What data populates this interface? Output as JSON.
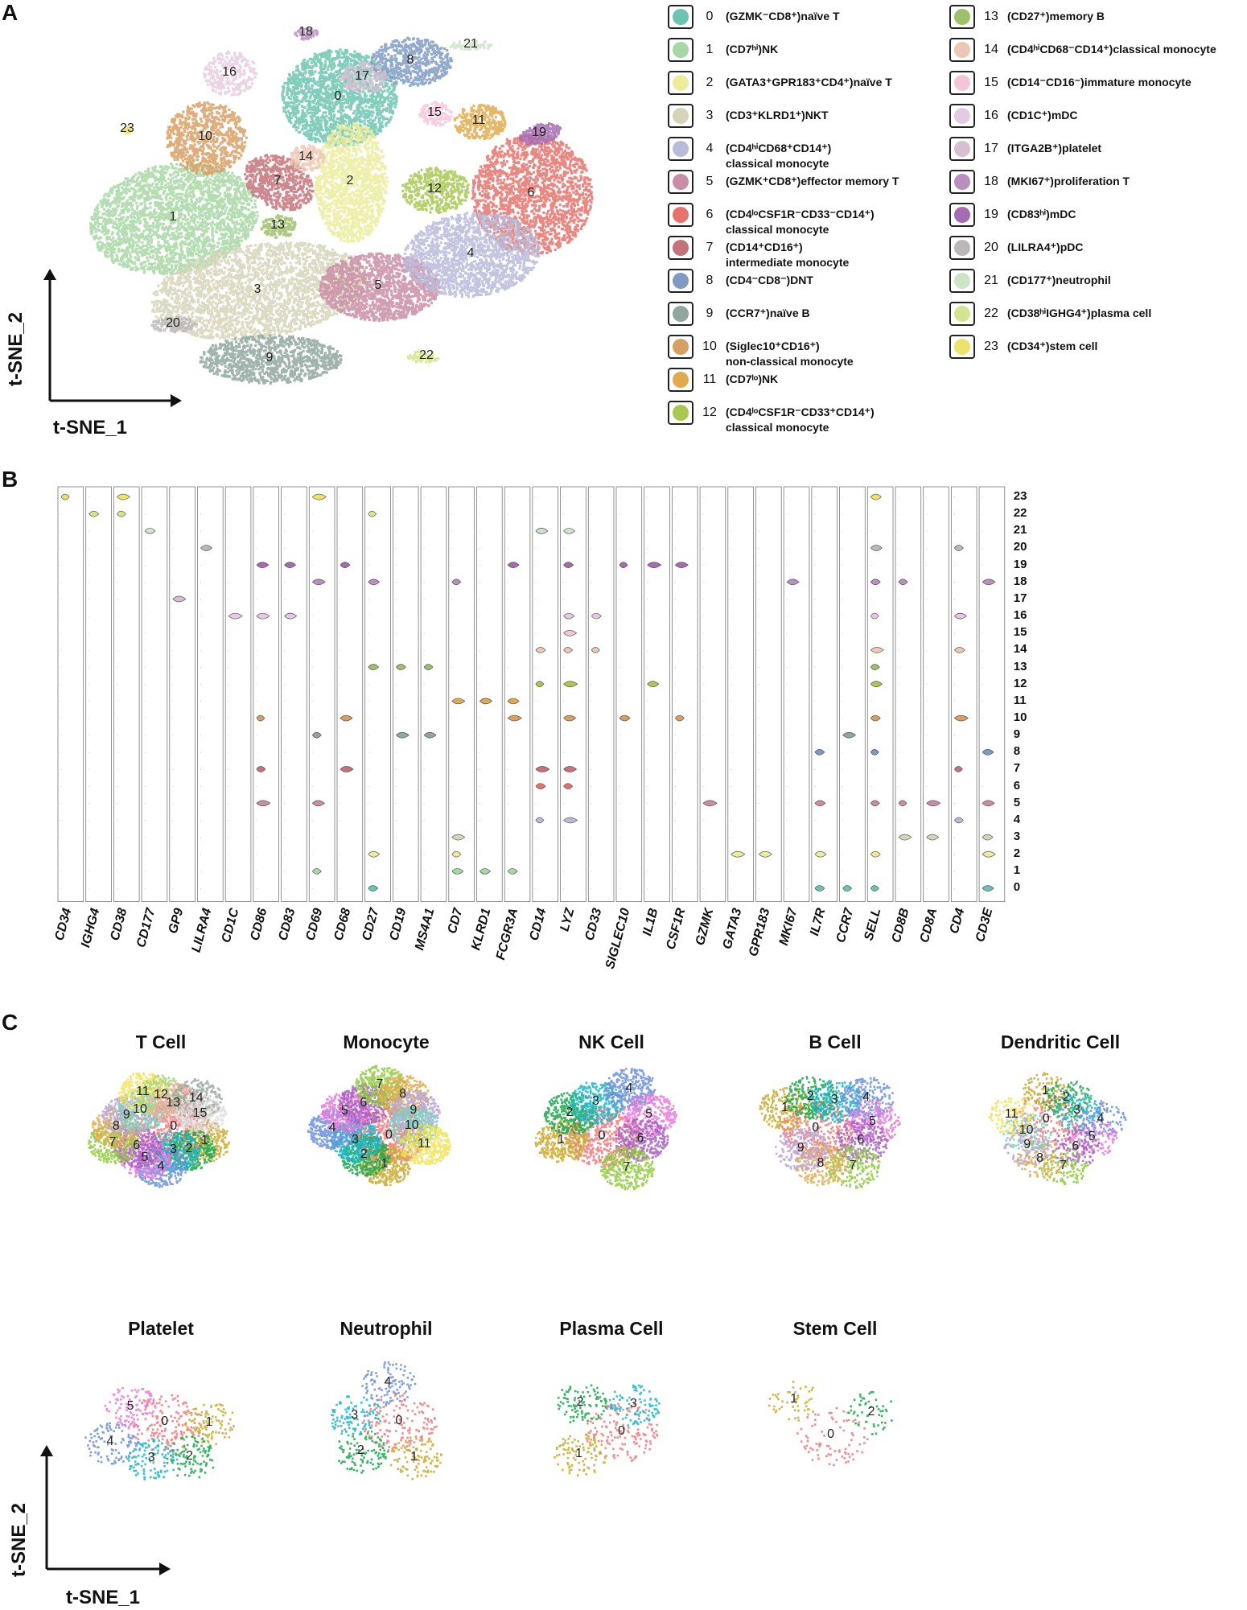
{
  "panels": {
    "a": "A",
    "b": "B",
    "c": "C"
  },
  "axes": {
    "x": "t-SNE_1",
    "y": "t-SNE_2"
  },
  "colors": [
    "#6cc4b0",
    "#a7d7a3",
    "#ecec9d",
    "#d6d4b8",
    "#b9bbdb",
    "#c98da5",
    "#e5736c",
    "#c4737a",
    "#7f9bc2",
    "#8fa79f",
    "#d89f65",
    "#dfab4d",
    "#a8c851",
    "#9ec06a",
    "#ecc7b3",
    "#f4c5d9",
    "#e5cbe1",
    "#d7bfd2",
    "#b98ec0",
    "#a56cb1",
    "#bcb7b9",
    "#cde4c7",
    "#d2e58f",
    "#ede26a"
  ],
  "chart_data": [
    {
      "type": "scatter",
      "title": "Panel A: t-SNE of all cell clusters",
      "xlabel": "t-SNE_1",
      "ylabel": "t-SNE_2",
      "cluster_labels": [
        "0",
        "1",
        "2",
        "3",
        "4",
        "5",
        "6",
        "7",
        "8",
        "9",
        "10",
        "11",
        "12",
        "13",
        "14",
        "15",
        "16",
        "17",
        "18",
        "19",
        "20",
        "21",
        "22",
        "23"
      ],
      "legend": [
        {
          "id": "0",
          "label": "(GZMK⁻CD8⁺)naïve T"
        },
        {
          "id": "1",
          "label": "(CD7ʰⁱ)NK"
        },
        {
          "id": "2",
          "label": "(GATA3⁺GPR183⁺CD4⁺)naïve T"
        },
        {
          "id": "3",
          "label": "(CD3⁺KLRD1⁺)NKT"
        },
        {
          "id": "4",
          "label": "(CD4ʰⁱCD68⁺CD14⁺)\nclassical monocyte"
        },
        {
          "id": "5",
          "label": "(GZMK⁺CD8⁺)effector memory T"
        },
        {
          "id": "6",
          "label": "(CD4ˡᵒCSF1R⁻CD33⁻CD14⁺)\nclassical monocyte"
        },
        {
          "id": "7",
          "label": "(CD14⁺CD16⁺)\nintermediate monocyte"
        },
        {
          "id": "8",
          "label": "(CD4⁻CD8⁻)DNT"
        },
        {
          "id": "9",
          "label": "(CCR7⁺)naïve B"
        },
        {
          "id": "10",
          "label": "(Siglec10⁺CD16⁺)\nnon-classical monocyte"
        },
        {
          "id": "11",
          "label": "(CD7ˡᵒ)NK"
        },
        {
          "id": "12",
          "label": "(CD4ˡᵒCSF1R⁻CD33⁺CD14⁺)\nclassical monocyte"
        },
        {
          "id": "13",
          "label": "(CD27⁺)memory B"
        },
        {
          "id": "14",
          "label": "(CD4ʰⁱCD68⁻CD14⁺)classical monocyte"
        },
        {
          "id": "15",
          "label": "(CD14⁻CD16⁻)immature monocyte"
        },
        {
          "id": "16",
          "label": "(CD1C⁺)mDC"
        },
        {
          "id": "17",
          "label": "(ITGA2B⁺)platelet"
        },
        {
          "id": "18",
          "label": "(MKI67⁺)proliferation T"
        },
        {
          "id": "19",
          "label": "(CD83ʰⁱ)mDC"
        },
        {
          "id": "20",
          "label": "(LILRA4⁺)pDC"
        },
        {
          "id": "21",
          "label": "(CD177⁺)neutrophil"
        },
        {
          "id": "22",
          "label": "(CD38ʰⁱIGHG4⁺)plasma cell"
        },
        {
          "id": "23",
          "label": "(CD34⁺)stem cell"
        }
      ]
    },
    {
      "type": "violin",
      "title": "Panel B: marker gene expression per cluster",
      "genes": [
        "CD34",
        "IGHG4",
        "CD38",
        "CD177",
        "GP9",
        "LILRA4",
        "CD1C",
        "CD86",
        "CD83",
        "CD69",
        "CD68",
        "CD27",
        "CD19",
        "MS4A1",
        "CD7",
        "KLRD1",
        "FCGR3A",
        "CD14",
        "LYZ",
        "CD33",
        "SIGLEC10",
        "IL1B",
        "CSF1R",
        "GZMK",
        "GATA3",
        "GPR183",
        "MKI67",
        "IL7R",
        "CCR7",
        "SELL",
        "CD8B",
        "CD8A",
        "CD4",
        "CD3E"
      ],
      "clusters": [
        "23",
        "22",
        "21",
        "20",
        "19",
        "18",
        "17",
        "16",
        "15",
        "14",
        "13",
        "12",
        "11",
        "10",
        "9",
        "8",
        "7",
        "6",
        "5",
        "4",
        "3",
        "2",
        "1",
        "0"
      ],
      "prominent_expression": [
        {
          "gene": "CD34",
          "clusters": [
            "23"
          ]
        },
        {
          "gene": "IGHG4",
          "clusters": [
            "22"
          ]
        },
        {
          "gene": "CD38",
          "clusters": [
            "22",
            "23"
          ]
        },
        {
          "gene": "CD177",
          "clusters": [
            "21"
          ]
        },
        {
          "gene": "GP9",
          "clusters": [
            "17"
          ]
        },
        {
          "gene": "LILRA4",
          "clusters": [
            "20"
          ]
        },
        {
          "gene": "CD1C",
          "clusters": [
            "16"
          ]
        },
        {
          "gene": "CD86",
          "clusters": [
            "19",
            "16",
            "10",
            "7",
            "5"
          ]
        },
        {
          "gene": "CD83",
          "clusters": [
            "19",
            "16"
          ]
        },
        {
          "gene": "CD69",
          "clusters": [
            "23",
            "18",
            "9",
            "5",
            "1"
          ]
        },
        {
          "gene": "CD68",
          "clusters": [
            "19",
            "10",
            "7"
          ]
        },
        {
          "gene": "CD27",
          "clusters": [
            "22",
            "18",
            "13",
            "2",
            "0"
          ]
        },
        {
          "gene": "CD19",
          "clusters": [
            "13",
            "9"
          ]
        },
        {
          "gene": "MS4A1",
          "clusters": [
            "13",
            "9"
          ]
        },
        {
          "gene": "CD7",
          "clusters": [
            "18",
            "11",
            "3",
            "2",
            "1"
          ]
        },
        {
          "gene": "KLRD1",
          "clusters": [
            "11",
            "1"
          ]
        },
        {
          "gene": "FCGR3A",
          "clusters": [
            "19",
            "11",
            "10",
            "1"
          ]
        },
        {
          "gene": "CD14",
          "clusters": [
            "21",
            "14",
            "12",
            "7",
            "6",
            "4"
          ]
        },
        {
          "gene": "LYZ",
          "clusters": [
            "21",
            "19",
            "16",
            "15",
            "14",
            "12",
            "10",
            "7",
            "6",
            "4"
          ]
        },
        {
          "gene": "CD33",
          "clusters": [
            "16",
            "14"
          ]
        },
        {
          "gene": "SIGLEC10",
          "clusters": [
            "19",
            "10"
          ]
        },
        {
          "gene": "IL1B",
          "clusters": [
            "19",
            "12"
          ]
        },
        {
          "gene": "CSF1R",
          "clusters": [
            "19",
            "10"
          ]
        },
        {
          "gene": "GZMK",
          "clusters": [
            "5"
          ]
        },
        {
          "gene": "GATA3",
          "clusters": [
            "2"
          ]
        },
        {
          "gene": "GPR183",
          "clusters": [
            "2"
          ]
        },
        {
          "gene": "MKI67",
          "clusters": [
            "18"
          ]
        },
        {
          "gene": "IL7R",
          "clusters": [
            "8",
            "5",
            "2",
            "0"
          ]
        },
        {
          "gene": "CCR7",
          "clusters": [
            "9",
            "0"
          ]
        },
        {
          "gene": "SELL",
          "clusters": [
            "23",
            "20",
            "18",
            "16",
            "14",
            "13",
            "12",
            "10",
            "8",
            "5",
            "2",
            "0"
          ]
        },
        {
          "gene": "CD8B",
          "clusters": [
            "18",
            "5",
            "3"
          ]
        },
        {
          "gene": "CD8A",
          "clusters": [
            "5",
            "3"
          ]
        },
        {
          "gene": "CD4",
          "clusters": [
            "20",
            "16",
            "14",
            "10",
            "7",
            "4"
          ]
        },
        {
          "gene": "CD3E",
          "clusters": [
            "18",
            "8",
            "5",
            "3",
            "2",
            "0"
          ]
        }
      ]
    },
    {
      "type": "scatter",
      "title": "Panel C: subclustering per cell type",
      "xlabel": "t-SNE_1",
      "ylabel": "t-SNE_2",
      "subplots": [
        {
          "title": "T Cell",
          "clusters": [
            "0",
            "1",
            "2",
            "3",
            "4",
            "5",
            "6",
            "7",
            "8",
            "9",
            "10",
            "11",
            "12",
            "13",
            "14",
            "15"
          ]
        },
        {
          "title": "Monocyte",
          "clusters": [
            "0",
            "1",
            "2",
            "3",
            "4",
            "5",
            "6",
            "7",
            "8",
            "9",
            "10",
            "11"
          ]
        },
        {
          "title": "NK Cell",
          "clusters": [
            "0",
            "1",
            "2",
            "3",
            "4",
            "5",
            "6",
            "7"
          ]
        },
        {
          "title": "B Cell",
          "clusters": [
            "0",
            "1",
            "2",
            "3",
            "4",
            "5",
            "6",
            "7",
            "8",
            "9"
          ]
        },
        {
          "title": "Dendritic Cell",
          "clusters": [
            "0",
            "1",
            "2",
            "3",
            "4",
            "5",
            "6",
            "7",
            "8",
            "9",
            "10",
            "11"
          ]
        },
        {
          "title": "Platelet",
          "clusters": [
            "0",
            "1",
            "2",
            "3",
            "4",
            "5"
          ]
        },
        {
          "title": "Neutrophil",
          "clusters": [
            "0",
            "1",
            "2",
            "3",
            "4"
          ]
        },
        {
          "title": "Plasma Cell",
          "clusters": [
            "0",
            "1",
            "2",
            "3"
          ]
        },
        {
          "title": "Stem Cell",
          "clusters": [
            "0",
            "1",
            "2"
          ]
        }
      ]
    }
  ]
}
